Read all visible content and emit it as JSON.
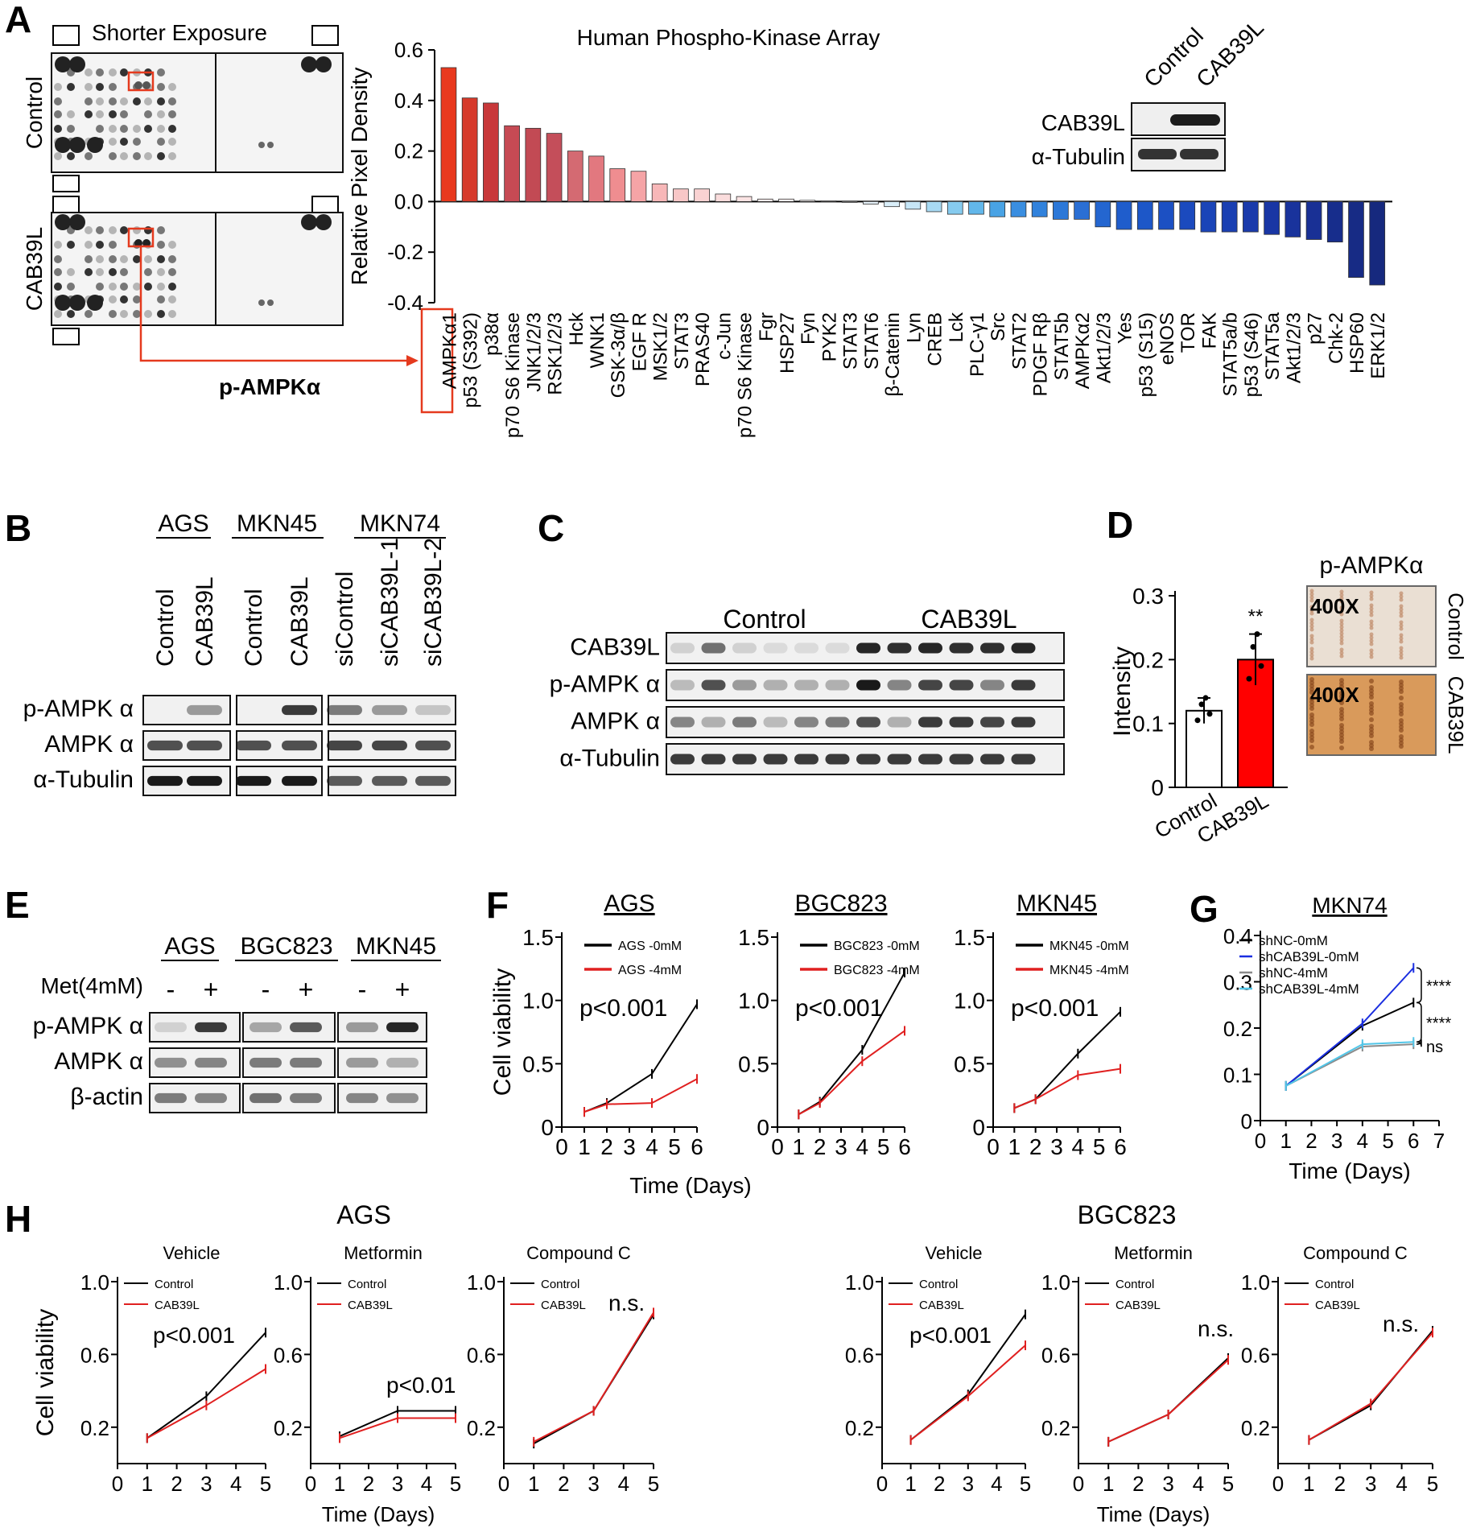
{
  "panels": {
    "A": {
      "letter": "A",
      "exposure_label": "Shorter Exposure",
      "row_labels": [
        "Control",
        "CAB39L"
      ],
      "callout": "p-AMPKα",
      "inset": {
        "cols": [
          "Control",
          "CAB39L"
        ],
        "rows": [
          "CAB39L",
          "α-Tubulin"
        ]
      }
    },
    "B": {
      "letter": "B",
      "groups": [
        "AGS",
        "MKN45",
        "MKN74"
      ],
      "lanes": [
        "Control",
        "CAB39L",
        "Control",
        "CAB39L",
        "siControl",
        "siCAB39L-1",
        "siCAB39L-2"
      ],
      "rows": [
        "p-AMPK α",
        "AMPK α",
        "α-Tubulin"
      ]
    },
    "C": {
      "letter": "C",
      "groups": [
        "Control",
        "CAB39L"
      ],
      "rows": [
        "CAB39L",
        "p-AMPK α",
        "AMPK α",
        "α-Tubulin"
      ]
    },
    "D": {
      "letter": "D",
      "image_title": "p-AMPKα",
      "magnification": "400X",
      "side_labels": [
        "Control",
        "CAB39L"
      ],
      "sig": "**"
    },
    "E": {
      "letter": "E",
      "groups": [
        "AGS",
        "BGC823",
        "MKN45"
      ],
      "treatment_label": "Met(4mM)",
      "signs": [
        "-",
        "+",
        "-",
        "+",
        "-",
        "+"
      ],
      "rows": [
        "p-AMPK α",
        "AMPK α",
        "β-actin"
      ]
    },
    "F": {
      "letter": "F",
      "shared_xlabel": "Time (Days)"
    },
    "G": {
      "letter": "G",
      "sig": [
        "****",
        "****",
        "ns"
      ]
    },
    "H": {
      "letter": "H",
      "groups": [
        "AGS",
        "BGC823"
      ],
      "shared_xlabel": "Time (Days)"
    }
  },
  "chart_data": [
    {
      "id": "A-bar",
      "type": "bar",
      "title": "Human Phospho-Kinase Array",
      "ylabel": "Relative Pixel Density",
      "ylim": [
        -0.4,
        0.6
      ],
      "yticks": [
        "0.6",
        "0.4",
        "0.2",
        "0.0",
        "-0.2",
        "-0.4"
      ],
      "highlight": "AMPKα1",
      "categories": [
        "AMPKα1",
        "p53 (S392)",
        "p38α",
        "p70 S6 Kinase",
        "JNK1/2/3",
        "RSK1/2/3",
        "Hck",
        "WNK1",
        "GSK-3α/β",
        "EGF R",
        "MSK1/2",
        "STAT3",
        "PRAS40",
        "c-Jun",
        "p70 S6 Kinase",
        "Fgr",
        "HSP27",
        "Fyn",
        "PYK2",
        "STAT3",
        "STAT6",
        "β-Catenin",
        "Lyn",
        "CREB",
        "Lck",
        "PLC-γ1",
        "Src",
        "STAT2",
        "PDGF Rβ",
        "STAT5b",
        "AMPKα2",
        "Akt1/2/3",
        "Yes",
        "p53 (S15)",
        "eNOS",
        "TOR",
        "FAK",
        "STAT5a/b",
        "p53 (S46)",
        "STAT5a",
        "Akt1/2/3",
        "p27",
        "Chk-2",
        "HSP60",
        "ERK1/2"
      ],
      "values": [
        0.53,
        0.41,
        0.39,
        0.3,
        0.29,
        0.27,
        0.2,
        0.18,
        0.13,
        0.12,
        0.07,
        0.05,
        0.05,
        0.03,
        0.02,
        0.01,
        0.01,
        0.005,
        0.003,
        0.0,
        -0.01,
        -0.02,
        -0.03,
        -0.04,
        -0.05,
        -0.05,
        -0.06,
        -0.06,
        -0.06,
        -0.07,
        -0.07,
        -0.1,
        -0.11,
        -0.11,
        -0.11,
        -0.11,
        -0.12,
        -0.12,
        -0.12,
        -0.13,
        -0.14,
        -0.15,
        -0.16,
        -0.3,
        -0.33
      ]
    },
    {
      "id": "D-bar",
      "type": "bar",
      "ylabel": "Intensity",
      "ylim": [
        0,
        0.3
      ],
      "yticks": [
        "0",
        "0.1",
        "0.2",
        "0.3"
      ],
      "categories": [
        "Control",
        "CAB39L"
      ],
      "values": [
        0.12,
        0.2
      ],
      "errors": [
        0.02,
        0.04
      ]
    },
    {
      "id": "F1",
      "type": "line",
      "title": "AGS",
      "ylabel": "Cell viability",
      "ylim": [
        0,
        1.5
      ],
      "yticks": [
        "0",
        "0.5",
        "1.0",
        "1.5"
      ],
      "xticks": [
        "0",
        "1",
        "2",
        "3",
        "4",
        "5",
        "6"
      ],
      "annotation": "p<0.001",
      "series": [
        {
          "name": "AGS -0mM",
          "color": "#000000",
          "x": [
            1,
            2,
            4,
            6
          ],
          "y": [
            0.12,
            0.19,
            0.42,
            0.97
          ]
        },
        {
          "name": "AGS -4mM",
          "color": "#e02020",
          "x": [
            1,
            2,
            4,
            6
          ],
          "y": [
            0.12,
            0.18,
            0.19,
            0.38
          ]
        }
      ]
    },
    {
      "id": "F2",
      "type": "line",
      "title": "BGC823",
      "ylim": [
        0,
        1.5
      ],
      "yticks": [
        "0",
        "0.5",
        "1.0",
        "1.5"
      ],
      "xticks": [
        "0",
        "1",
        "2",
        "3",
        "4",
        "5",
        "6"
      ],
      "annotation": "p<0.001",
      "series": [
        {
          "name": "BGC823 -0mM",
          "color": "#000000",
          "x": [
            1,
            2,
            4,
            6
          ],
          "y": [
            0.1,
            0.2,
            0.61,
            1.22
          ]
        },
        {
          "name": "BGC823 -4mM",
          "color": "#e02020",
          "x": [
            1,
            2,
            4,
            6
          ],
          "y": [
            0.1,
            0.19,
            0.52,
            0.76
          ]
        }
      ]
    },
    {
      "id": "F3",
      "type": "line",
      "title": "MKN45",
      "ylim": [
        0,
        1.5
      ],
      "yticks": [
        "0",
        "0.5",
        "1.0",
        "1.5"
      ],
      "xticks": [
        "0",
        "1",
        "2",
        "3",
        "4",
        "5",
        "6"
      ],
      "annotation": "p<0.001",
      "series": [
        {
          "name": "MKN45 -0mM",
          "color": "#000000",
          "x": [
            1,
            2,
            4,
            6
          ],
          "y": [
            0.15,
            0.22,
            0.58,
            0.91
          ]
        },
        {
          "name": "MKN45 -4mM",
          "color": "#e02020",
          "x": [
            1,
            2,
            4,
            6
          ],
          "y": [
            0.15,
            0.22,
            0.41,
            0.46
          ]
        }
      ]
    },
    {
      "id": "G",
      "type": "line",
      "title": "MKN74",
      "xlabel": "Time (Days)",
      "ylim": [
        0,
        0.4
      ],
      "yticks": [
        "0",
        "0.1",
        "0.2",
        "0.3",
        "0.4"
      ],
      "xticks": [
        "0",
        "1",
        "2",
        "3",
        "4",
        "5",
        "6",
        "7"
      ],
      "series": [
        {
          "name": "shNC-0mM",
          "color": "#000000",
          "x": [
            1,
            4,
            6
          ],
          "y": [
            0.075,
            0.205,
            0.255
          ]
        },
        {
          "name": "shCAB39L-0mM",
          "color": "#1a2ee0",
          "x": [
            1,
            4,
            6
          ],
          "y": [
            0.075,
            0.21,
            0.33
          ]
        },
        {
          "name": "shNC-4mM",
          "color": "#8a8a8a",
          "x": [
            1,
            4,
            6
          ],
          "y": [
            0.075,
            0.16,
            0.165
          ]
        },
        {
          "name": "shCAB39L-4mM",
          "color": "#52c6e8",
          "x": [
            1,
            4,
            6
          ],
          "y": [
            0.075,
            0.165,
            0.17
          ]
        }
      ]
    },
    {
      "id": "H1",
      "type": "line",
      "title": "Vehicle",
      "ylabel": "Cell viability",
      "ylim": [
        0,
        1.0
      ],
      "yticks": [
        "0.2",
        "0.6",
        "1.0"
      ],
      "xticks": [
        "0",
        "1",
        "2",
        "3",
        "4",
        "5"
      ],
      "annotation": "p<0.001",
      "series": [
        {
          "name": "Control",
          "color": "#000000",
          "x": [
            1,
            3,
            5
          ],
          "y": [
            0.14,
            0.37,
            0.72
          ]
        },
        {
          "name": "CAB39L",
          "color": "#e02020",
          "x": [
            1,
            3,
            5
          ],
          "y": [
            0.14,
            0.32,
            0.52
          ]
        }
      ]
    },
    {
      "id": "H2",
      "type": "line",
      "title": "Metformin",
      "ylim": [
        0,
        1.0
      ],
      "yticks": [
        "0.2",
        "0.6",
        "1.0"
      ],
      "xticks": [
        "0",
        "1",
        "2",
        "3",
        "4",
        "5"
      ],
      "annotation": "p<0.01",
      "series": [
        {
          "name": "Control",
          "color": "#000000",
          "x": [
            1,
            3,
            5
          ],
          "y": [
            0.15,
            0.29,
            0.29
          ]
        },
        {
          "name": "CAB39L",
          "color": "#e02020",
          "x": [
            1,
            3,
            5
          ],
          "y": [
            0.14,
            0.25,
            0.25
          ]
        }
      ]
    },
    {
      "id": "H3",
      "type": "line",
      "title": "Compound C",
      "ylim": [
        0,
        1.0
      ],
      "yticks": [
        "0.2",
        "0.6",
        "1.0"
      ],
      "xticks": [
        "0",
        "1",
        "2",
        "3",
        "4",
        "5"
      ],
      "annotation": "n.s.",
      "series": [
        {
          "name": "Control",
          "color": "#000000",
          "x": [
            1,
            3,
            5
          ],
          "y": [
            0.11,
            0.29,
            0.82
          ]
        },
        {
          "name": "CAB39L",
          "color": "#e02020",
          "x": [
            1,
            3,
            5
          ],
          "y": [
            0.12,
            0.29,
            0.83
          ]
        }
      ]
    },
    {
      "id": "H4",
      "type": "line",
      "title": "Vehicle",
      "ylim": [
        0,
        1.0
      ],
      "yticks": [
        "0.2",
        "0.6",
        "1.0"
      ],
      "xticks": [
        "0",
        "1",
        "2",
        "3",
        "4",
        "5"
      ],
      "annotation": "p<0.001",
      "series": [
        {
          "name": "Control",
          "color": "#000000",
          "x": [
            1,
            3,
            5
          ],
          "y": [
            0.13,
            0.38,
            0.82
          ]
        },
        {
          "name": "CAB39L",
          "color": "#e02020",
          "x": [
            1,
            3,
            5
          ],
          "y": [
            0.13,
            0.37,
            0.65
          ]
        }
      ]
    },
    {
      "id": "H5",
      "type": "line",
      "title": "Metformin",
      "ylim": [
        0,
        1.0
      ],
      "yticks": [
        "0.2",
        "0.6",
        "1.0"
      ],
      "xticks": [
        "0",
        "1",
        "2",
        "3",
        "4",
        "5"
      ],
      "annotation": "n.s.",
      "series": [
        {
          "name": "Control",
          "color": "#000000",
          "x": [
            1,
            3,
            5
          ],
          "y": [
            0.12,
            0.27,
            0.58
          ]
        },
        {
          "name": "CAB39L",
          "color": "#e02020",
          "x": [
            1,
            3,
            5
          ],
          "y": [
            0.12,
            0.27,
            0.57
          ]
        }
      ]
    },
    {
      "id": "H6",
      "type": "line",
      "title": "Compound C",
      "ylim": [
        0,
        1.0
      ],
      "yticks": [
        "0.2",
        "0.6",
        "1.0"
      ],
      "xticks": [
        "0",
        "1",
        "2",
        "3",
        "4",
        "5"
      ],
      "annotation": "n.s.",
      "series": [
        {
          "name": "Control",
          "color": "#000000",
          "x": [
            1,
            3,
            5
          ],
          "y": [
            0.13,
            0.32,
            0.73
          ]
        },
        {
          "name": "CAB39L",
          "color": "#e02020",
          "x": [
            1,
            3,
            5
          ],
          "y": [
            0.13,
            0.33,
            0.72
          ]
        }
      ]
    }
  ]
}
